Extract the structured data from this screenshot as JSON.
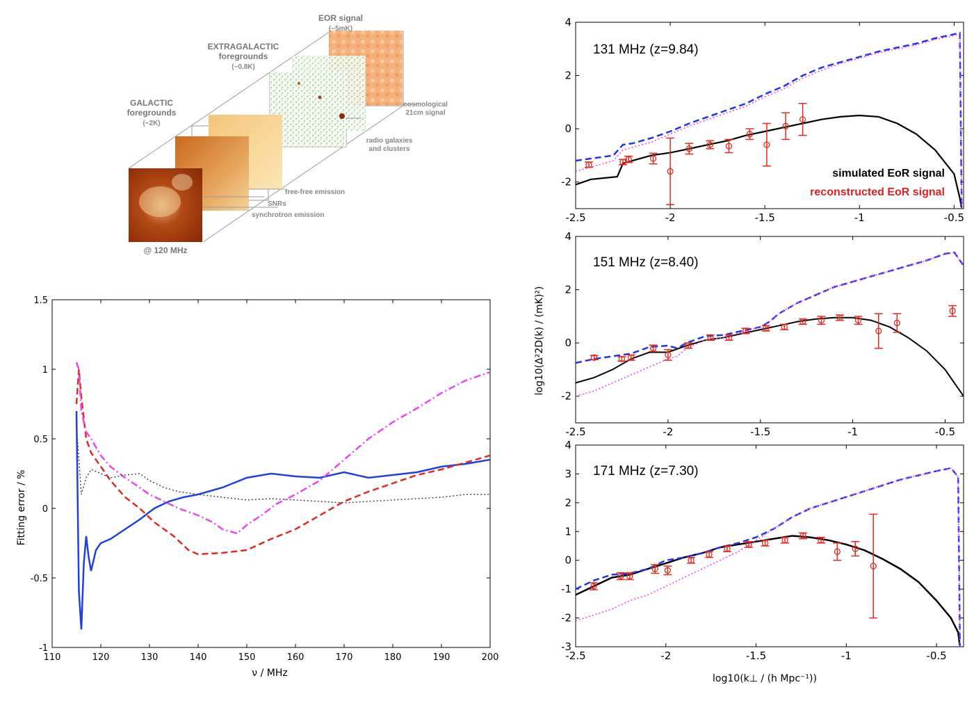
{
  "diagram": {
    "eor_title": "EOR signal",
    "eor_sub": "(~5mK)",
    "extra_title_1": "EXTRAGALACTIC",
    "extra_title_2": "foregrounds",
    "extra_sub": "(~0.8K)",
    "gal_title_1": "GALACTIC",
    "gal_title_2": "foregrounds",
    "gal_sub": "(~2K)",
    "cosmo_1": "cosmological",
    "cosmo_2": "21cm signal",
    "radio_1": "radio galaxies",
    "radio_2": "and clusters",
    "freefree": "free-free emission",
    "snrs": "SNRs",
    "synch": "synchrotron emission",
    "freq": "@ 120 MHz",
    "colors": {
      "galactic": "#c8661c",
      "extragalactic": "#3aa83a",
      "eor": "#f0a060"
    }
  },
  "chart_data": [
    {
      "type": "line",
      "xlabel": "ν / MHz",
      "ylabel": "Fitting error / %",
      "xlim": [
        110,
        200
      ],
      "ylim": [
        -1,
        1.5
      ],
      "xticks": [
        "110",
        "120",
        "130",
        "140",
        "150",
        "160",
        "170",
        "180",
        "190",
        "200"
      ],
      "yticks": [
        "-1",
        "-0.5",
        "0",
        "0.5",
        "1",
        "1.5"
      ],
      "series": [
        {
          "color": "#1f3fe0",
          "style": "solid",
          "x": [
            115,
            115.5,
            116,
            116.5,
            117,
            117.5,
            118,
            119,
            120,
            122,
            125,
            128,
            131,
            134,
            137,
            140,
            145,
            150,
            155,
            160,
            165,
            170,
            175,
            180,
            185,
            190,
            195,
            200
          ],
          "y": [
            0.7,
            -0.6,
            -0.87,
            -0.4,
            -0.2,
            -0.35,
            -0.45,
            -0.3,
            -0.25,
            -0.22,
            -0.15,
            -0.08,
            0.0,
            0.05,
            0.08,
            0.1,
            0.15,
            0.22,
            0.25,
            0.23,
            0.22,
            0.26,
            0.22,
            0.24,
            0.26,
            0.3,
            0.32,
            0.35
          ]
        },
        {
          "color": "#e02a20",
          "style": "dashed",
          "x": [
            115,
            115.5,
            116,
            117,
            118,
            120,
            122,
            125,
            128,
            131,
            135,
            138,
            140,
            145,
            150,
            155,
            160,
            165,
            170,
            175,
            180,
            185,
            190,
            195,
            200
          ],
          "y": [
            0.75,
            1.0,
            0.8,
            0.5,
            0.4,
            0.3,
            0.2,
            0.08,
            0.0,
            -0.1,
            -0.2,
            -0.3,
            -0.33,
            -0.32,
            -0.3,
            -0.22,
            -0.15,
            -0.05,
            0.05,
            0.12,
            0.18,
            0.24,
            0.28,
            0.33,
            0.38
          ]
        },
        {
          "color": "#ee44ee",
          "style": "dashdot",
          "x": [
            115,
            115.5,
            116,
            117,
            118,
            120,
            122,
            125,
            128,
            130,
            133,
            136,
            140,
            143,
            145,
            148,
            150,
            153,
            156,
            160,
            165,
            170,
            175,
            180,
            185,
            190,
            195,
            200
          ],
          "y": [
            1.05,
            1.0,
            0.7,
            0.55,
            0.5,
            0.38,
            0.3,
            0.22,
            0.15,
            0.1,
            0.05,
            0.0,
            -0.05,
            -0.1,
            -0.15,
            -0.18,
            -0.12,
            -0.05,
            0.03,
            0.1,
            0.2,
            0.35,
            0.5,
            0.62,
            0.72,
            0.83,
            0.92,
            0.98
          ]
        },
        {
          "color": "#444444",
          "style": "dotted",
          "x": [
            115,
            116,
            117,
            118,
            120,
            122,
            125,
            128,
            130,
            133,
            136,
            140,
            145,
            150,
            155,
            160,
            165,
            170,
            175,
            180,
            185,
            190,
            195,
            200
          ],
          "y": [
            0.6,
            0.1,
            0.22,
            0.28,
            0.25,
            0.22,
            0.24,
            0.25,
            0.2,
            0.15,
            0.12,
            0.1,
            0.08,
            0.06,
            0.07,
            0.06,
            0.05,
            0.04,
            0.05,
            0.06,
            0.07,
            0.08,
            0.1,
            0.1
          ]
        }
      ]
    },
    {
      "type": "line",
      "title": "131 MHz (z=9.84)",
      "xlim": [
        -2.5,
        -0.45
      ],
      "ylim": [
        -3,
        4
      ],
      "xticks": [
        "-2.5",
        "-2",
        "-1.5",
        "-1",
        "-0.5"
      ],
      "yticks": [
        "-2",
        "0",
        "2",
        "4"
      ],
      "legend": [
        "simulated EoR signal",
        "reconstructed EoR signal"
      ],
      "series": [
        {
          "name": "simulated EoR signal",
          "color": "#000000",
          "style": "solid",
          "x": [
            -2.5,
            -2.42,
            -2.35,
            -2.28,
            -2.25,
            -2.2,
            -2.1,
            -2.0,
            -1.9,
            -1.8,
            -1.7,
            -1.6,
            -1.5,
            -1.4,
            -1.3,
            -1.2,
            -1.1,
            -1.0,
            -0.9,
            -0.8,
            -0.7,
            -0.6,
            -0.5,
            -0.47,
            -0.46
          ],
          "y": [
            -2.1,
            -1.9,
            -1.85,
            -1.8,
            -1.3,
            -1.2,
            -1.0,
            -0.9,
            -0.75,
            -0.6,
            -0.45,
            -0.25,
            -0.1,
            0.05,
            0.2,
            0.35,
            0.45,
            0.5,
            0.45,
            0.2,
            -0.2,
            -0.8,
            -1.7,
            -2.6,
            -3.0
          ]
        },
        {
          "color": "#2233ee",
          "style": "dashed",
          "x": [
            -2.5,
            -2.4,
            -2.3,
            -2.25,
            -2.2,
            -2.1,
            -2.0,
            -1.9,
            -1.8,
            -1.7,
            -1.6,
            -1.5,
            -1.4,
            -1.3,
            -1.2,
            -1.1,
            -1.0,
            -0.9,
            -0.8,
            -0.7,
            -0.6,
            -0.5,
            -0.47,
            -0.46
          ],
          "y": [
            -1.2,
            -1.1,
            -1.0,
            -0.6,
            -0.55,
            -0.35,
            -0.1,
            0.2,
            0.45,
            0.7,
            0.95,
            1.3,
            1.6,
            2.0,
            2.3,
            2.5,
            2.7,
            2.9,
            3.05,
            3.2,
            3.4,
            3.55,
            3.6,
            -3.0
          ]
        },
        {
          "color": "#ee44ee",
          "style": "dotted",
          "x": [
            -2.5,
            -2.4,
            -2.3,
            -2.25,
            -2.2,
            -2.1,
            -2.0,
            -1.9,
            -1.8,
            -1.7,
            -1.6,
            -1.5,
            -1.4,
            -1.3,
            -1.2,
            -1.1,
            -1.0,
            -0.9,
            -0.8,
            -0.7,
            -0.6,
            -0.5,
            -0.47,
            -0.46
          ],
          "y": [
            -1.6,
            -1.4,
            -1.2,
            -0.8,
            -0.7,
            -0.5,
            -0.2,
            0.1,
            0.35,
            0.6,
            0.85,
            1.2,
            1.5,
            1.9,
            2.2,
            2.45,
            2.65,
            2.85,
            3.0,
            3.15,
            3.35,
            3.5,
            3.55,
            -3.0
          ]
        }
      ],
      "points": {
        "name": "reconstructed EoR signal",
        "color": "#e02a20",
        "x": [
          -2.43,
          -2.25,
          -2.22,
          -2.09,
          -2.0,
          -1.9,
          -1.79,
          -1.69,
          -1.58,
          -1.49,
          -1.39,
          -1.3
        ],
        "y": [
          -1.35,
          -1.25,
          -1.15,
          -1.12,
          -1.6,
          -0.75,
          -0.6,
          -0.65,
          -0.2,
          -0.6,
          0.1,
          0.35
        ],
        "err": [
          0.1,
          0.1,
          0.12,
          0.2,
          1.25,
          0.2,
          0.15,
          0.25,
          0.2,
          0.8,
          0.5,
          0.6
        ]
      }
    },
    {
      "type": "line",
      "title": "151 MHz (z=8.40)",
      "ylabel": "log10(Δ²2D(k) / (mK)²)",
      "xlim": [
        -2.5,
        -0.4
      ],
      "ylim": [
        -3,
        4
      ],
      "xticks": [
        "-2.5",
        "-2",
        "-1.5",
        "-1",
        "-0.5"
      ],
      "yticks": [
        "-2",
        "0",
        "2",
        "4"
      ],
      "series": [
        {
          "color": "#000000",
          "style": "solid",
          "x": [
            -2.5,
            -2.4,
            -2.3,
            -2.2,
            -2.1,
            -2.0,
            -1.9,
            -1.8,
            -1.7,
            -1.6,
            -1.5,
            -1.4,
            -1.3,
            -1.2,
            -1.1,
            -1.0,
            -0.9,
            -0.8,
            -0.7,
            -0.6,
            -0.5,
            -0.45,
            -0.4
          ],
          "y": [
            -1.5,
            -1.3,
            -1.0,
            -0.6,
            -0.35,
            -0.35,
            -0.1,
            0.1,
            0.2,
            0.35,
            0.5,
            0.65,
            0.8,
            0.9,
            0.95,
            0.95,
            0.85,
            0.6,
            0.2,
            -0.3,
            -1.0,
            -1.5,
            -2.0
          ]
        },
        {
          "color": "#2233ee",
          "style": "dashed",
          "x": [
            -2.5,
            -2.4,
            -2.3,
            -2.2,
            -2.1,
            -2.0,
            -1.95,
            -1.9,
            -1.8,
            -1.7,
            -1.6,
            -1.5,
            -1.45,
            -1.4,
            -1.3,
            -1.2,
            -1.1,
            -1.0,
            -0.9,
            -0.8,
            -0.7,
            -0.6,
            -0.5,
            -0.45,
            -0.4
          ],
          "y": [
            -0.75,
            -0.6,
            -0.5,
            -0.4,
            -0.15,
            -0.1,
            -0.2,
            0.0,
            0.25,
            0.3,
            0.45,
            0.6,
            0.8,
            1.1,
            1.5,
            1.8,
            2.1,
            2.3,
            2.5,
            2.7,
            2.9,
            3.1,
            3.35,
            3.4,
            2.9
          ]
        },
        {
          "color": "#ee44ee",
          "style": "dotted",
          "x": [
            -2.5,
            -2.4,
            -2.3,
            -2.2,
            -2.1,
            -2.0,
            -1.95,
            -1.9,
            -1.8,
            -1.7,
            -1.6,
            -1.5,
            -1.45,
            -1.4,
            -1.3,
            -1.2,
            -1.1,
            -1.0,
            -0.9,
            -0.8,
            -0.7,
            -0.6,
            -0.5,
            -0.45,
            -0.4
          ],
          "y": [
            -2.0,
            -1.8,
            -1.5,
            -1.2,
            -0.9,
            -0.6,
            -0.5,
            -0.2,
            0.1,
            0.2,
            0.4,
            0.6,
            0.8,
            1.1,
            1.5,
            1.8,
            2.1,
            2.3,
            2.5,
            2.7,
            2.9,
            3.1,
            3.35,
            3.4,
            2.9
          ]
        }
      ],
      "points": {
        "color": "#e02a20",
        "x": [
          -2.4,
          -2.25,
          -2.2,
          -2.08,
          -2.0,
          -1.89,
          -1.77,
          -1.67,
          -1.58,
          -1.47,
          -1.37,
          -1.27,
          -1.17,
          -1.07,
          -0.97,
          -0.86,
          -0.76,
          -0.46
        ],
        "y": [
          -0.55,
          -0.6,
          -0.55,
          -0.2,
          -0.45,
          -0.1,
          0.2,
          0.2,
          0.45,
          0.55,
          0.6,
          0.8,
          0.85,
          0.95,
          0.85,
          0.45,
          0.75,
          1.2
        ],
        "err": [
          0.08,
          0.08,
          0.1,
          0.12,
          0.2,
          0.1,
          0.1,
          0.1,
          0.1,
          0.1,
          0.1,
          0.1,
          0.15,
          0.1,
          0.15,
          0.65,
          0.35,
          0.2
        ]
      }
    },
    {
      "type": "line",
      "title": "171 MHz (z=7.30)",
      "xlabel": "log10(k⊥ / (h Mpc⁻¹))",
      "xlim": [
        -2.5,
        -0.35
      ],
      "ylim": [
        -3,
        4
      ],
      "xticks": [
        "-2.5",
        "-2",
        "-1.5",
        "-1",
        "-0.5"
      ],
      "yticks": [
        "-3",
        "-2",
        "-1",
        "0",
        "1",
        "2",
        "3",
        "4"
      ],
      "series": [
        {
          "color": "#000000",
          "style": "solid",
          "x": [
            -2.5,
            -2.4,
            -2.3,
            -2.2,
            -2.1,
            -2.0,
            -1.9,
            -1.8,
            -1.7,
            -1.6,
            -1.5,
            -1.4,
            -1.3,
            -1.2,
            -1.1,
            -1.0,
            -0.9,
            -0.8,
            -0.7,
            -0.6,
            -0.5,
            -0.42,
            -0.38,
            -0.37
          ],
          "y": [
            -1.2,
            -0.9,
            -0.6,
            -0.5,
            -0.3,
            -0.1,
            0.1,
            0.25,
            0.45,
            0.55,
            0.65,
            0.75,
            0.85,
            0.8,
            0.7,
            0.55,
            0.35,
            0.05,
            -0.3,
            -0.75,
            -1.4,
            -2.0,
            -2.5,
            -3.0
          ]
        },
        {
          "color": "#2233ee",
          "style": "dashed",
          "x": [
            -2.5,
            -2.4,
            -2.3,
            -2.2,
            -2.1,
            -2.0,
            -1.9,
            -1.8,
            -1.7,
            -1.6,
            -1.5,
            -1.4,
            -1.3,
            -1.2,
            -1.1,
            -1.0,
            -0.9,
            -0.8,
            -0.7,
            -0.6,
            -0.5,
            -0.42,
            -0.38,
            -0.37
          ],
          "y": [
            -1.0,
            -0.7,
            -0.5,
            -0.45,
            -0.3,
            0.0,
            0.1,
            0.25,
            0.45,
            0.6,
            0.8,
            1.1,
            1.5,
            1.8,
            2.0,
            2.2,
            2.4,
            2.6,
            2.8,
            2.95,
            3.1,
            3.2,
            2.9,
            -3.0
          ]
        },
        {
          "color": "#ee44ee",
          "style": "dotted",
          "x": [
            -2.5,
            -2.4,
            -2.3,
            -2.2,
            -2.1,
            -2.0,
            -1.9,
            -1.8,
            -1.7,
            -1.6,
            -1.5,
            -1.4,
            -1.3,
            -1.2,
            -1.1,
            -1.0,
            -0.9,
            -0.8,
            -0.7,
            -0.6,
            -0.5,
            -0.42,
            -0.38,
            -0.37
          ],
          "y": [
            -2.1,
            -1.9,
            -1.7,
            -1.4,
            -1.2,
            -0.9,
            -0.6,
            -0.3,
            0.0,
            0.3,
            0.7,
            1.1,
            1.5,
            1.8,
            2.0,
            2.2,
            2.4,
            2.6,
            2.8,
            2.95,
            3.1,
            3.2,
            2.9,
            -3.0
          ]
        }
      ],
      "points": {
        "color": "#e02a20",
        "x": [
          -2.4,
          -2.25,
          -2.2,
          -2.06,
          -1.99,
          -1.86,
          -1.76,
          -1.66,
          -1.54,
          -1.45,
          -1.34,
          -1.24,
          -1.14,
          -1.05,
          -0.95,
          -0.85
        ],
        "y": [
          -0.9,
          -0.55,
          -0.55,
          -0.3,
          -0.35,
          0.0,
          0.2,
          0.4,
          0.55,
          0.6,
          0.7,
          0.85,
          0.7,
          0.3,
          0.4,
          -0.2
        ],
        "err": [
          0.12,
          0.12,
          0.12,
          0.15,
          0.15,
          0.1,
          0.1,
          0.1,
          0.1,
          0.1,
          0.1,
          0.1,
          0.1,
          0.3,
          0.25,
          1.8
        ]
      }
    }
  ]
}
